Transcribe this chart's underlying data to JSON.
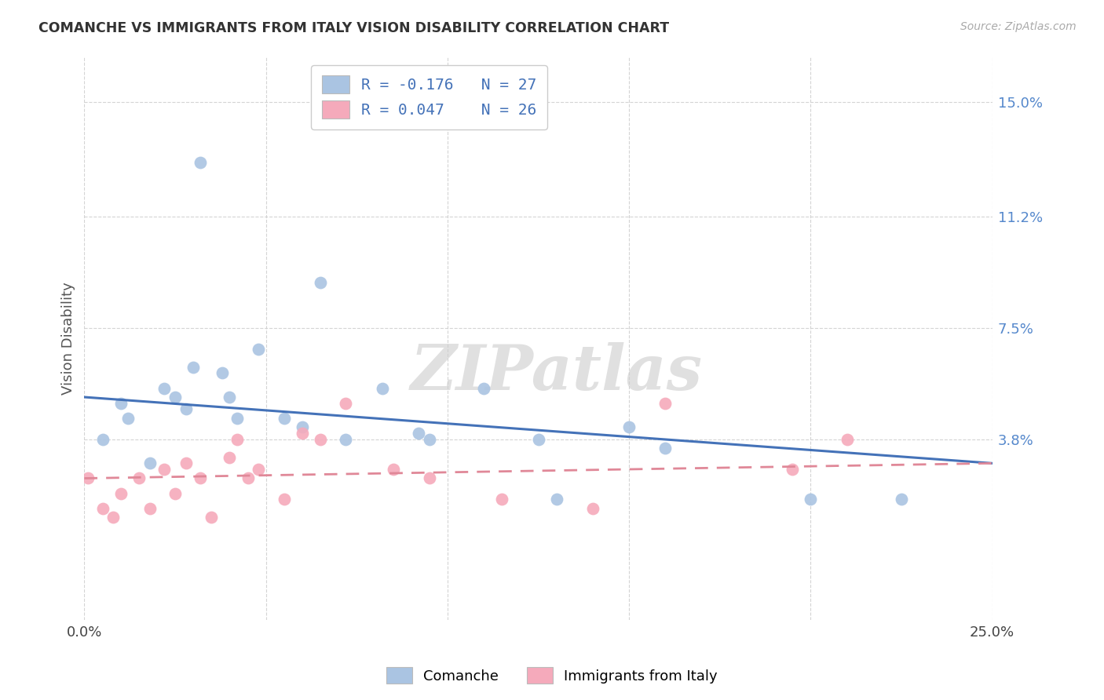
{
  "title": "COMANCHE VS IMMIGRANTS FROM ITALY VISION DISABILITY CORRELATION CHART",
  "source": "Source: ZipAtlas.com",
  "ylabel": "Vision Disability",
  "xlim": [
    0.0,
    0.25
  ],
  "ylim": [
    -0.022,
    0.165
  ],
  "ytick_positions": [
    0.038,
    0.075,
    0.112,
    0.15
  ],
  "ytick_labels": [
    "3.8%",
    "7.5%",
    "11.2%",
    "15.0%"
  ],
  "background_color": "#ffffff",
  "grid_color": "#d0d0d0",
  "watermark": "ZIPatlas",
  "legend_label1": "Comanche",
  "legend_label2": "Immigrants from Italy",
  "blue_color": "#aac4e2",
  "pink_color": "#f5aabb",
  "blue_line_color": "#4472b8",
  "pink_line_color": "#e08898",
  "comanche_x": [
    0.005,
    0.01,
    0.012,
    0.018,
    0.022,
    0.025,
    0.028,
    0.03,
    0.032,
    0.038,
    0.04,
    0.042,
    0.048,
    0.055,
    0.06,
    0.065,
    0.072,
    0.082,
    0.092,
    0.095,
    0.11,
    0.125,
    0.13,
    0.15,
    0.16,
    0.2,
    0.225
  ],
  "comanche_y": [
    0.038,
    0.05,
    0.045,
    0.03,
    0.055,
    0.052,
    0.048,
    0.062,
    0.13,
    0.06,
    0.052,
    0.045,
    0.068,
    0.045,
    0.042,
    0.09,
    0.038,
    0.055,
    0.04,
    0.038,
    0.055,
    0.038,
    0.018,
    0.042,
    0.035,
    0.018,
    0.018
  ],
  "italy_x": [
    0.001,
    0.005,
    0.008,
    0.01,
    0.015,
    0.018,
    0.022,
    0.025,
    0.028,
    0.032,
    0.035,
    0.04,
    0.042,
    0.045,
    0.048,
    0.055,
    0.06,
    0.065,
    0.072,
    0.085,
    0.095,
    0.115,
    0.14,
    0.16,
    0.195,
    0.21
  ],
  "italy_y": [
    0.025,
    0.015,
    0.012,
    0.02,
    0.025,
    0.015,
    0.028,
    0.02,
    0.03,
    0.025,
    0.012,
    0.032,
    0.038,
    0.025,
    0.028,
    0.018,
    0.04,
    0.038,
    0.05,
    0.028,
    0.025,
    0.018,
    0.015,
    0.05,
    0.028,
    0.038
  ]
}
